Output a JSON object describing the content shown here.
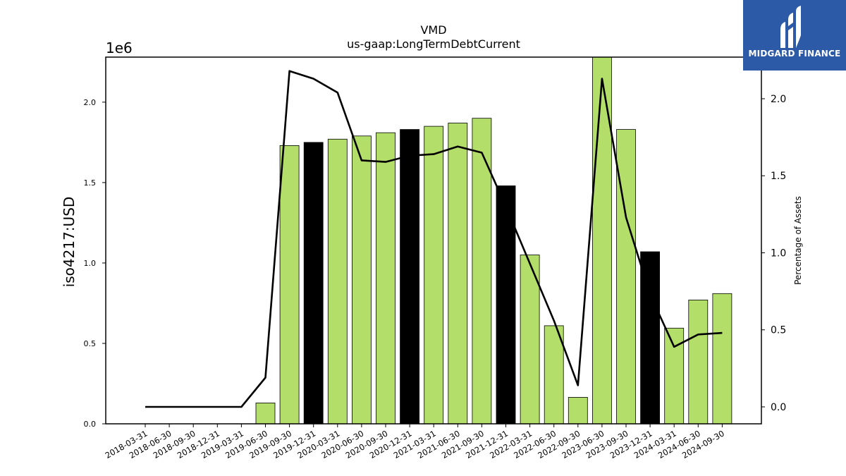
{
  "chart_data": {
    "type": "bar",
    "title": "VMD",
    "subtitle": "us-gaap:LongTermDebtCurrent",
    "ylabel": "iso4217:USD",
    "y_offset_label": "1e6",
    "y2label": "Percentage of Assets",
    "ylim": [
      0,
      2.28
    ],
    "y2lim": [
      -0.11,
      2.27
    ],
    "yticks": [
      "0.0",
      "0.5",
      "1.0",
      "1.5",
      "2.0"
    ],
    "y2ticks": [
      "0.0",
      "0.5",
      "1.0",
      "1.5",
      "2.0"
    ],
    "categories": [
      "2018-03-31",
      "2018-06-30",
      "2018-09-30",
      "2018-12-31",
      "2019-03-31",
      "2019-06-30",
      "2019-09-30",
      "2019-12-31",
      "2020-03-31",
      "2020-06-30",
      "2020-09-30",
      "2020-12-31",
      "2021-03-31",
      "2021-06-30",
      "2021-09-30",
      "2021-12-31",
      "2022-03-31",
      "2022-06-30",
      "2022-09-30",
      "2023-06-30",
      "2023-09-30",
      "2023-12-31",
      "2024-03-31",
      "2024-06-30",
      "2024-09-30"
    ],
    "values": [
      0,
      0,
      0,
      0,
      0,
      0.13,
      1.73,
      1.75,
      1.77,
      1.79,
      1.81,
      1.83,
      1.85,
      1.87,
      1.9,
      1.48,
      1.05,
      0.61,
      0.165,
      2.28,
      1.83,
      1.07,
      0.595,
      0.77,
      0.81
    ],
    "highlight": [
      false,
      false,
      false,
      true,
      false,
      false,
      false,
      true,
      false,
      false,
      false,
      true,
      false,
      false,
      false,
      true,
      false,
      false,
      false,
      false,
      false,
      true,
      false,
      false,
      false
    ],
    "line_series": {
      "name": "Percentage of Assets",
      "values": [
        0,
        0,
        0,
        0,
        0,
        0.19,
        2.18,
        2.13,
        2.04,
        1.6,
        1.59,
        1.63,
        1.64,
        1.69,
        1.65,
        1.3,
        0.93,
        0.56,
        0.14,
        2.13,
        1.23,
        0.73,
        0.39,
        0.47,
        0.48
      ]
    },
    "colors": {
      "bar": "#b3de69",
      "bar_highlight": "#000000",
      "line": "#000000"
    },
    "grid": false
  },
  "logo": {
    "text": "MIDGARD FINANCE",
    "bg": "#2d5aa6"
  }
}
